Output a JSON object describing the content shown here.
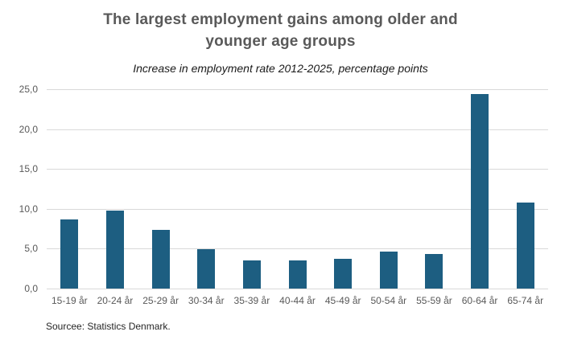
{
  "chart_data": {
    "type": "bar",
    "title": "The largest employment gains among older and younger age groups",
    "subtitle": "Increase in employment rate 2012-2025, percentage points",
    "source_note": "Sourcee: Statistics Denmark.",
    "categories": [
      "15-19 år",
      "20-24 år",
      "25-29 år",
      "30-34 år",
      "35-39 år",
      "40-44 år",
      "45-49 år",
      "50-54 år",
      "55-59 år",
      "60-64 år",
      "65-74 år"
    ],
    "values": [
      8.7,
      9.8,
      7.4,
      4.9,
      3.5,
      3.5,
      3.7,
      4.6,
      4.3,
      24.4,
      10.8
    ],
    "xlabel": "",
    "ylabel": "",
    "ylim": [
      0,
      25
    ],
    "ytick_values": [
      0,
      5,
      10,
      15,
      20,
      25
    ],
    "ytick_labels": [
      "0,0",
      "5,0",
      "10,0",
      "15,0",
      "20,0",
      "25,0"
    ],
    "grid": "horizontal",
    "legend_position": "none",
    "decimal_separator": ","
  },
  "colors": {
    "bar": "#1d5e81",
    "gridline": "#d9d9d9",
    "title_text": "#595959",
    "subtitle_text": "#1a1a1a",
    "axis_label_text": "#595959",
    "source_text": "#262626",
    "background": "#ffffff"
  }
}
